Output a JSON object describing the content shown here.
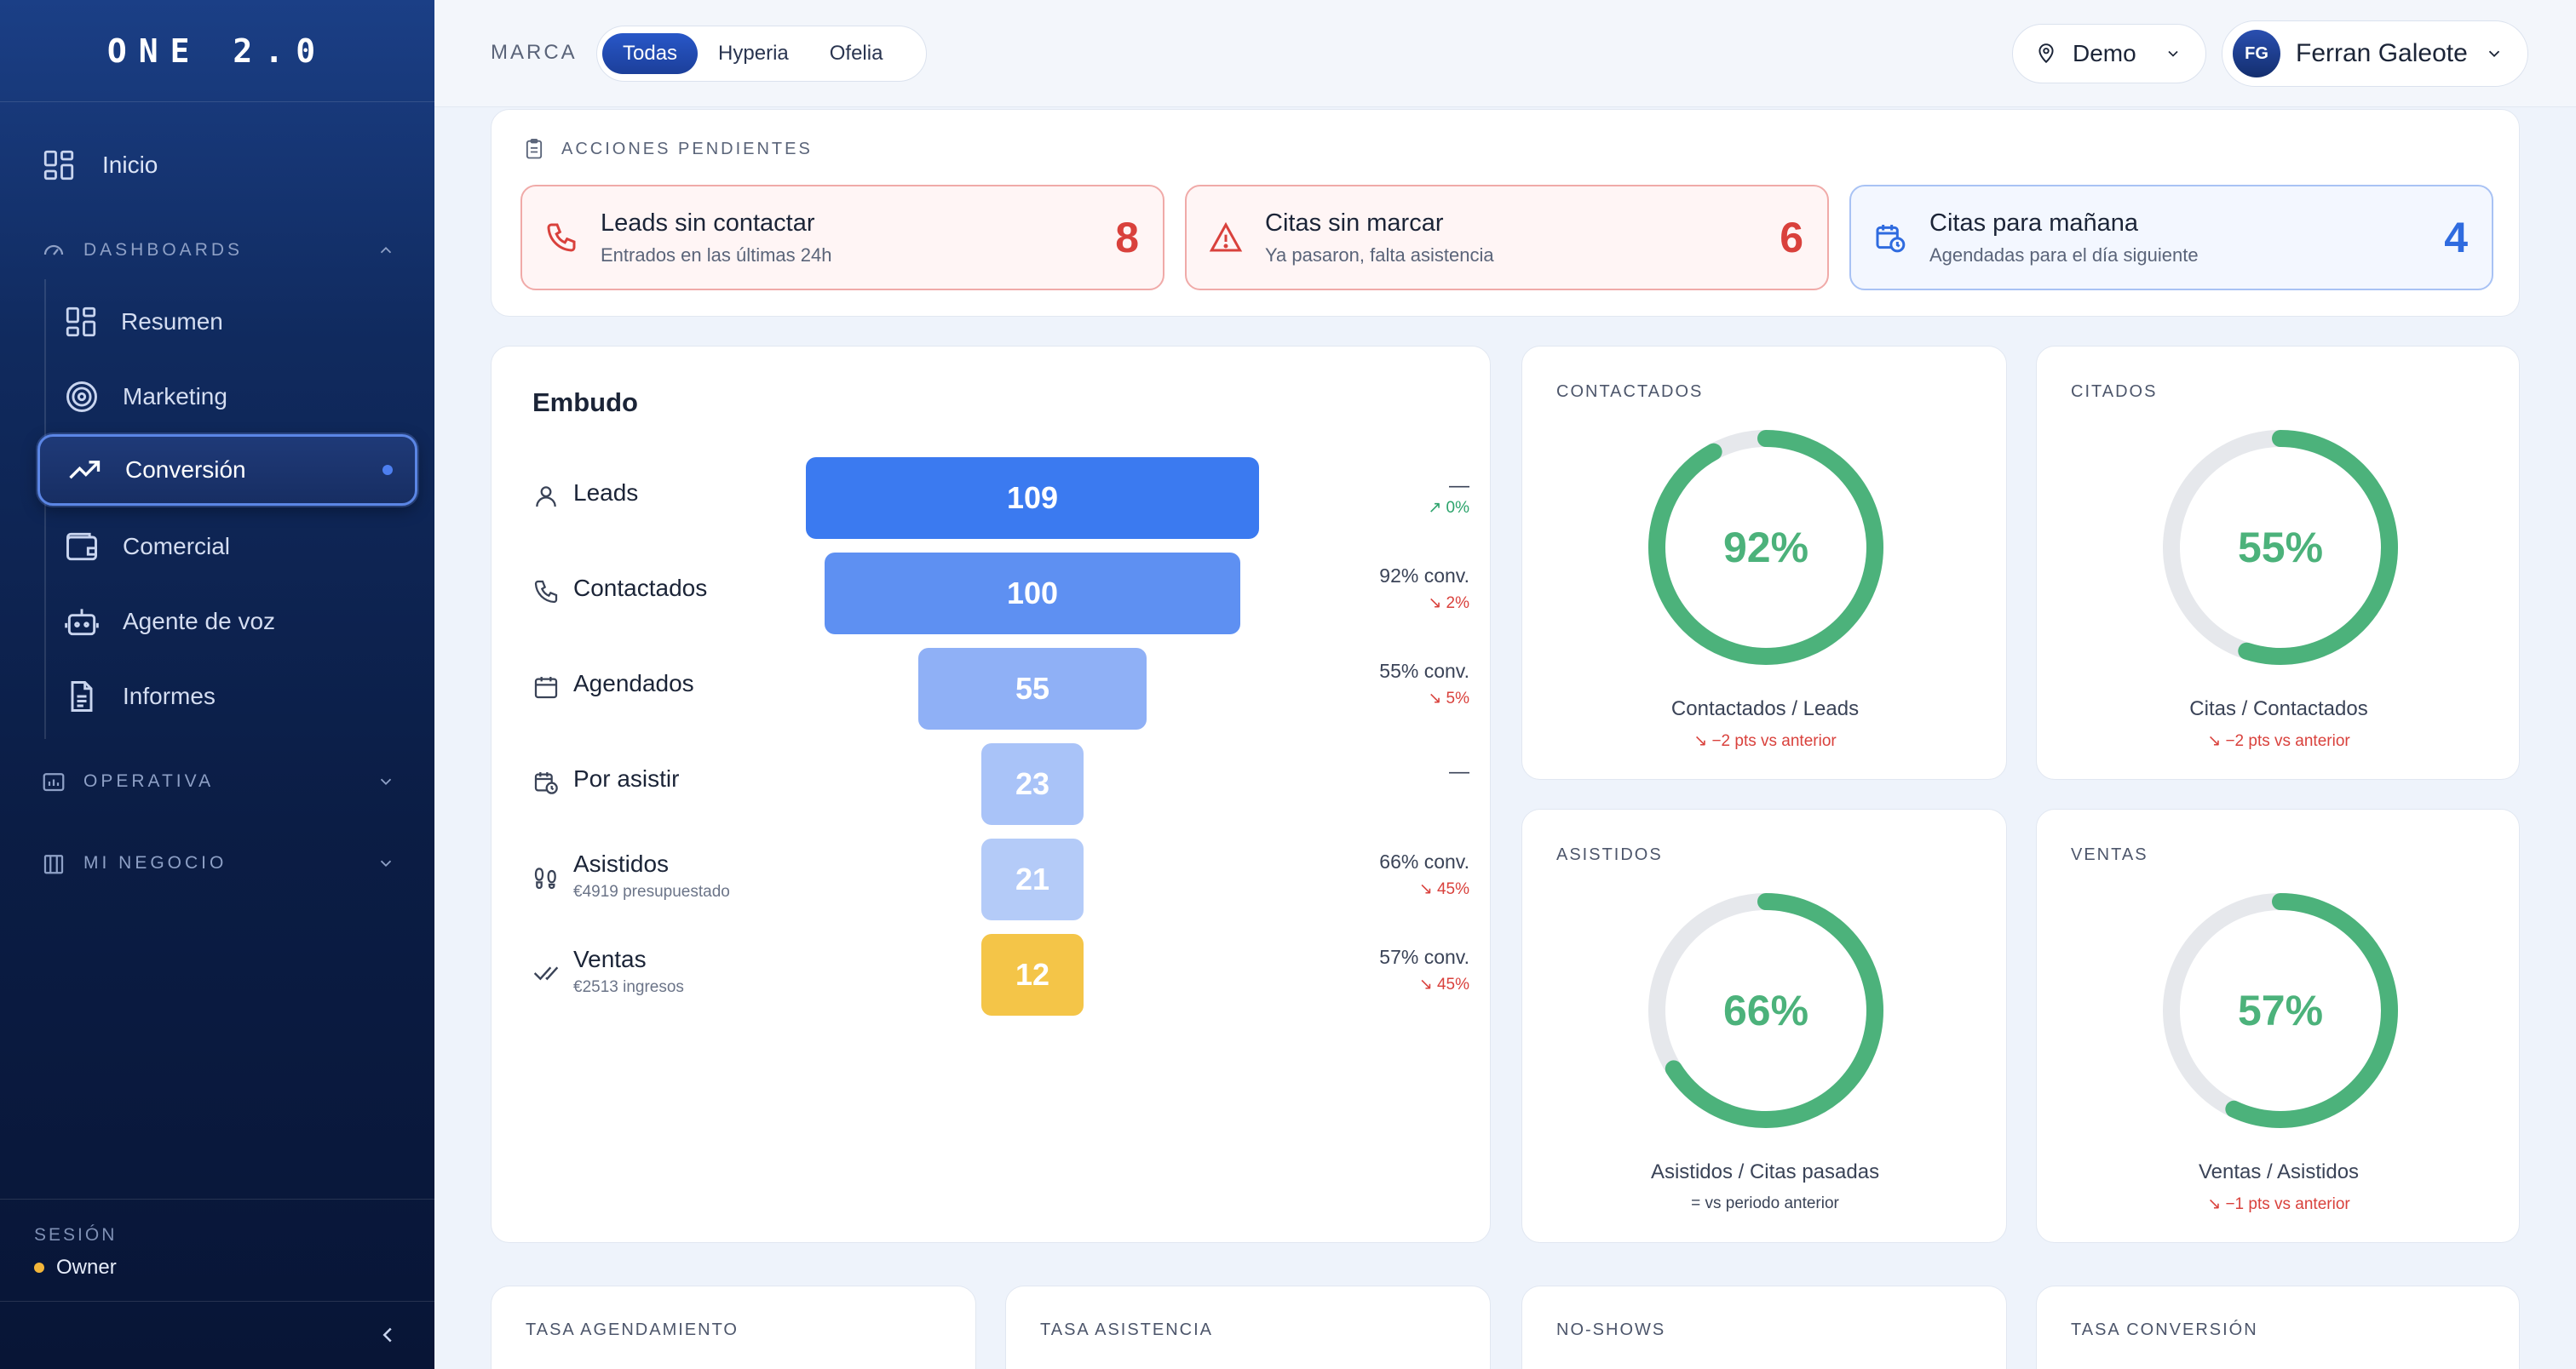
{
  "sidebar": {
    "logo": "ONE 2.0",
    "home": "Inicio",
    "dashboards_label": "DASHBOARDS",
    "dashboard_items": [
      {
        "label": "Resumen",
        "icon": "grid-icon"
      },
      {
        "label": "Marketing",
        "icon": "target-icon"
      },
      {
        "label": "Conversión",
        "icon": "trending-up-icon",
        "active": true
      },
      {
        "label": "Comercial",
        "icon": "wallet-icon"
      },
      {
        "label": "Agente de voz",
        "icon": "bot-icon"
      },
      {
        "label": "Informes",
        "icon": "document-icon"
      }
    ],
    "operativa_label": "OPERATIVA",
    "negocio_label": "MI NEGOCIO",
    "session_label": "SESIÓN",
    "session_role": "Owner"
  },
  "topbar": {
    "marca_label": "MARCA",
    "brands": [
      "Todas",
      "Hyperia",
      "Ofelia"
    ],
    "selected_brand": "Todas",
    "location": "Demo",
    "user_initials": "FG",
    "user_name": "Ferran Galeote"
  },
  "pending": {
    "title": "ACCIONES PENDIENTES",
    "items": [
      {
        "title": "Leads sin contactar",
        "subtitle": "Entrados en las últimas 24h",
        "count": "8",
        "tone": "red"
      },
      {
        "title": "Citas sin marcar",
        "subtitle": "Ya pasaron, falta asistencia",
        "count": "6",
        "tone": "red"
      },
      {
        "title": "Citas para mañana",
        "subtitle": "Agendadas para el día siguiente",
        "count": "4",
        "tone": "blue"
      }
    ]
  },
  "funnel": {
    "title": "Embudo",
    "rows": [
      {
        "label": "Leads",
        "sub": "",
        "value": "109",
        "conv": "—",
        "delta": "0%",
        "trend": "up"
      },
      {
        "label": "Contactados",
        "sub": "",
        "value": "100",
        "conv": "92% conv.",
        "delta": "2%",
        "trend": "down"
      },
      {
        "label": "Agendados",
        "sub": "",
        "value": "55",
        "conv": "55% conv.",
        "delta": "5%",
        "trend": "down"
      },
      {
        "label": "Por asistir",
        "sub": "",
        "value": "23",
        "conv": "—",
        "delta": "",
        "trend": ""
      },
      {
        "label": "Asistidos",
        "sub": "€4919 presupuestado",
        "value": "21",
        "conv": "66% conv.",
        "delta": "45%",
        "trend": "down"
      },
      {
        "label": "Ventas",
        "sub": "€2513 ingresos",
        "value": "12",
        "conv": "57% conv.",
        "delta": "45%",
        "trend": "down"
      }
    ],
    "colors": [
      "#3b7af0",
      "#5e90f2",
      "#8fb0f6",
      "#a9c3f8",
      "#b4cbf8",
      "#f4c548"
    ]
  },
  "gauges": [
    {
      "title": "CONTACTADOS",
      "percent": 92,
      "label": "92%",
      "caption": "Contactados / Leads",
      "delta": "−2 pts vs anterior",
      "trend": "down"
    },
    {
      "title": "CITADOS",
      "percent": 55,
      "label": "55%",
      "caption": "Citas / Contactados",
      "delta": "−2 pts vs anterior",
      "trend": "down"
    },
    {
      "title": "ASISTIDOS",
      "percent": 66,
      "label": "66%",
      "caption": "Asistidos / Citas pasadas",
      "delta": "= vs periodo anterior",
      "trend": "neutral"
    },
    {
      "title": "VENTAS",
      "percent": 57,
      "label": "57%",
      "caption": "Ventas / Asistidos",
      "delta": "−1 pts vs anterior",
      "trend": "down"
    }
  ],
  "bottom_cards": [
    "TASA AGENDAMIENTO",
    "TASA ASISTENCIA",
    "NO-SHOWS",
    "TASA CONVERSIÓN"
  ],
  "colors": {
    "accent": "#2f6bdf",
    "success": "#4cb27b",
    "danger": "#d9413c",
    "warning": "#f3b63a"
  }
}
